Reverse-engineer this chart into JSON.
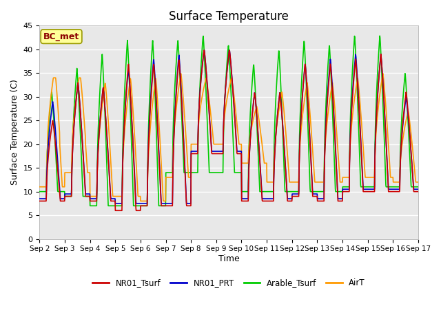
{
  "title": "Surface Temperature",
  "ylabel": "Surface Temperature (C)",
  "xlabel": "Time",
  "ylim": [
    0,
    45
  ],
  "xlim": [
    0,
    15
  ],
  "annotation_text": "BC_met",
  "annotation_color": "#8B0000",
  "annotation_bg": "#FFFF99",
  "plot_bg": "#E8E8E8",
  "grid_color": "white",
  "series": {
    "NR01_Tsurf": {
      "color": "#CC0000",
      "lw": 1.2
    },
    "NR01_PRT": {
      "color": "#0000CC",
      "lw": 1.2
    },
    "Arable_Tsurf": {
      "color": "#00CC00",
      "lw": 1.2
    },
    "AirT": {
      "color": "#FF9900",
      "lw": 1.2
    }
  },
  "xtick_labels": [
    "Sep 2",
    "Sep 3",
    "Sep 4",
    "Sep 5",
    "Sep 6",
    "Sep 7",
    "Sep 8",
    "Sep 9",
    "Sep 10",
    "Sep 11",
    "Sep 12",
    "Sep 13",
    "Sep 14",
    "Sep 15",
    "Sep 16",
    "Sep 17"
  ],
  "ytick_values": [
    0,
    5,
    10,
    15,
    20,
    25,
    30,
    35,
    40,
    45
  ],
  "figsize": [
    6.4,
    4.8
  ],
  "dpi": 100
}
